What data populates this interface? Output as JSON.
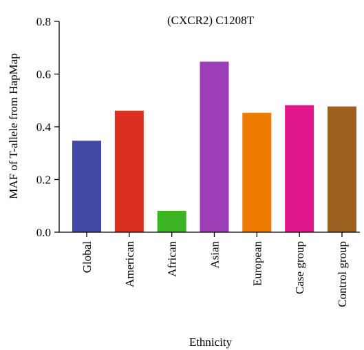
{
  "chart_data": {
    "type": "bar",
    "title": "(CXCR2) C1208T",
    "xlabel": "Ethnicity",
    "ylabel": "MAF of T-allele from HapMap",
    "ylim": [
      0,
      0.8
    ],
    "yticks": [
      "0.0",
      "0.2",
      "0.4",
      "0.6",
      "0.8"
    ],
    "ytick_values": [
      0,
      0.2,
      0.4,
      0.6,
      0.8
    ],
    "grid": false,
    "legend": "none",
    "categories": [
      "Global",
      "American",
      "African",
      "Asian",
      "European",
      "Case group",
      "Control group"
    ],
    "values": [
      0.347,
      0.461,
      0.081,
      0.647,
      0.453,
      0.482,
      0.477
    ],
    "colors": [
      "#4149a5",
      "#db2f1f",
      "#3bb521",
      "#9e3eb7",
      "#ee7b00",
      "#e0168d",
      "#9c6020"
    ]
  }
}
